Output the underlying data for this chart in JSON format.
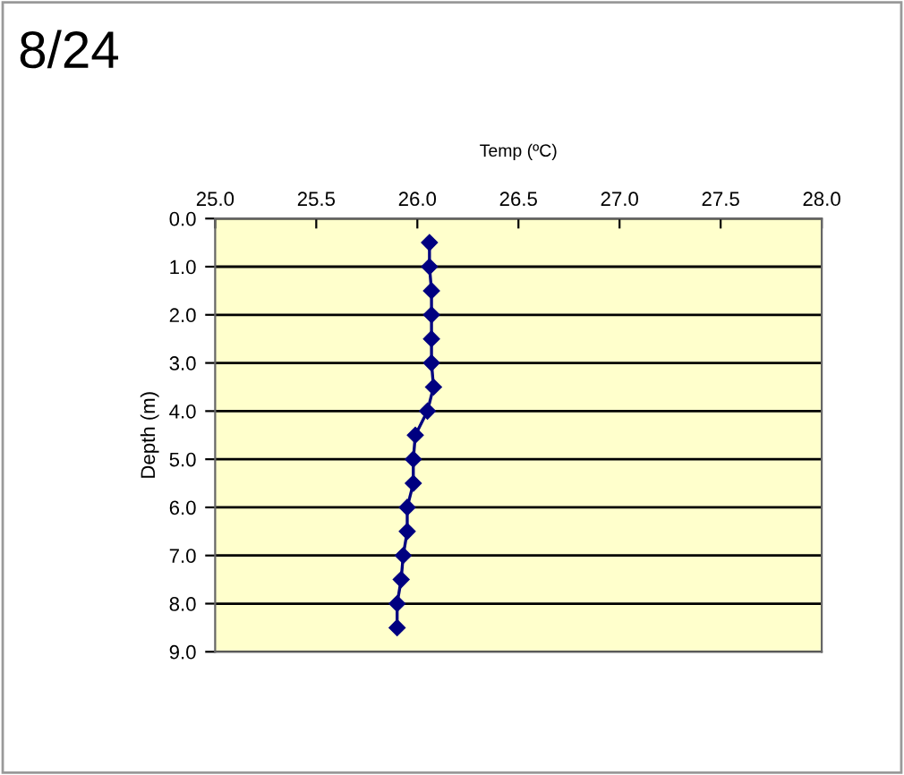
{
  "chart_data": {
    "type": "line",
    "title": "8/24",
    "xlabel": "Temp (ºC)",
    "ylabel": "Depth (m)",
    "series": [
      {
        "color": "#000080",
        "x": [
          26.06,
          26.06,
          26.07,
          26.07,
          26.07,
          26.07,
          26.08,
          26.05,
          25.99,
          25.98,
          25.98,
          25.95,
          25.95,
          25.93,
          25.92,
          25.9,
          25.9
        ],
        "values": [
          0.5,
          1.0,
          1.5,
          2.0,
          2.5,
          3.0,
          3.5,
          4.0,
          4.5,
          5.0,
          5.5,
          6.0,
          6.5,
          7.0,
          7.5,
          8.0,
          8.5
        ]
      }
    ],
    "xlim": [
      25.0,
      28.0
    ],
    "xticks": [
      {
        "value": 25.0,
        "label": "25.0"
      },
      {
        "value": 25.5,
        "label": "25.5"
      },
      {
        "value": 26.0,
        "label": "26.0"
      },
      {
        "value": 26.5,
        "label": "26.5"
      },
      {
        "value": 27.0,
        "label": "27.0"
      },
      {
        "value": 27.5,
        "label": "27.5"
      },
      {
        "value": 28.0,
        "label": "28.0"
      }
    ],
    "ylim": [
      9.0,
      0.0
    ],
    "yticks": [
      {
        "value": 0,
        "label": "0.0"
      },
      {
        "value": 1,
        "label": "1.0"
      },
      {
        "value": 2,
        "label": "2.0"
      },
      {
        "value": 3,
        "label": "3.0"
      },
      {
        "value": 4,
        "label": "4.0"
      },
      {
        "value": 5,
        "label": "5.0"
      },
      {
        "value": 6,
        "label": "6.0"
      },
      {
        "value": 7,
        "label": "7.0"
      },
      {
        "value": 8,
        "label": "8.0"
      },
      {
        "value": 9,
        "label": "9.0"
      }
    ],
    "grid": "y",
    "marker": "diamond",
    "line_style": "solid",
    "legend": false
  }
}
